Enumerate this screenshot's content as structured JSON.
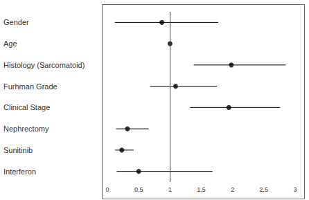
{
  "chart_data": {
    "type": "forest",
    "categories": [
      "Gender",
      "Age",
      "Histology (Sarcomatoid)",
      "Furhman Grade",
      "Clinical Stage",
      "Nephrectomy",
      "Sunitinib",
      "Interferon"
    ],
    "values": [
      0.87,
      1.0,
      1.98,
      1.09,
      1.94,
      0.32,
      0.23,
      0.5
    ],
    "ci_lower": [
      0.12,
      0.99,
      1.38,
      0.68,
      1.32,
      0.14,
      0.12,
      0.15
    ],
    "ci_upper": [
      1.77,
      1.01,
      2.85,
      1.75,
      2.76,
      0.66,
      0.42,
      1.68
    ],
    "reference_line": 1,
    "xlim": [
      0,
      3
    ],
    "xticks": [
      0,
      {
        "value": 0.5,
        "label": "0,5"
      },
      1,
      {
        "value": 1.5,
        "label": "1,5"
      },
      2,
      {
        "value": 2.5,
        "label": "2,5"
      },
      3
    ],
    "color": "#000000",
    "grid": false
  }
}
